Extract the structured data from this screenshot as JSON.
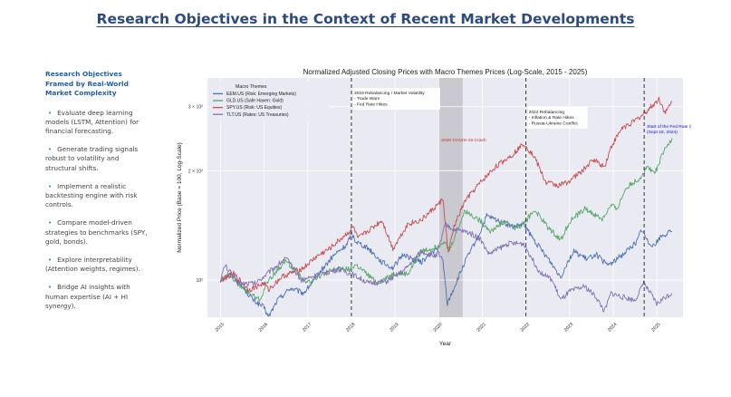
{
  "page": {
    "title": "Research Objectives in the Context of Recent Market Developments"
  },
  "sidebar": {
    "heading": "Research Objectives Framed by Real-World Market Complexity",
    "items": [
      {
        "label": "Evaluate deep learning models (LSTM, Attention) for financial forecasting."
      },
      {
        "label": "Generate trading signals robust to volatility and structural shifts."
      },
      {
        "label": "Implement a realistic backtesting engine with risk controls."
      },
      {
        "label": "Compare model-driven strategies to benchmarks (SPY, gold, bonds)."
      },
      {
        "label": "Explore interpretability (Attention weights, regimes)."
      },
      {
        "label": "Bridge AI insights with human expertise (AI + HI synergy)."
      }
    ]
  },
  "chart_data": {
    "type": "line",
    "title": "Normalized Adjusted Closing Prices with Macro Themes Prices (Log-Scale, 2015 - 2025)",
    "xlabel": "Year",
    "ylabel": "Normalized Price (Base = 100, Log-Scale)",
    "y_scale": "log",
    "xlim": [
      2014.7,
      2025.6
    ],
    "ylim": [
      79,
      360
    ],
    "x_ticks": [
      "2015",
      "2016",
      "2017",
      "2018",
      "2019",
      "2020",
      "2021",
      "2022",
      "2023",
      "2024",
      "2025"
    ],
    "y_ticks": [
      {
        "value": 100,
        "label": "10²"
      },
      {
        "value": 200,
        "label": "2 × 10²"
      },
      {
        "value": 300,
        "label": "3 × 10²"
      }
    ],
    "grid": true,
    "legend": {
      "title": "Macro Themes",
      "placement": "top-left"
    },
    "series": [
      {
        "name": "EEM.US (Risk: Emerging Markets)",
        "color": "#4c72b0",
        "points": [
          [
            2015.0,
            100
          ],
          [
            2015.25,
            104
          ],
          [
            2015.5,
            96
          ],
          [
            2015.75,
            88
          ],
          [
            2016.0,
            84
          ],
          [
            2016.1,
            79
          ],
          [
            2016.3,
            88
          ],
          [
            2016.6,
            95
          ],
          [
            2016.9,
            92
          ],
          [
            2017.0,
            95
          ],
          [
            2017.3,
            106
          ],
          [
            2017.6,
            117
          ],
          [
            2017.9,
            125
          ],
          [
            2018.0,
            135
          ],
          [
            2018.1,
            128
          ],
          [
            2018.4,
            122
          ],
          [
            2018.7,
            112
          ],
          [
            2018.95,
            108
          ],
          [
            2019.2,
            118
          ],
          [
            2019.4,
            114
          ],
          [
            2019.6,
            112
          ],
          [
            2019.95,
            122
          ],
          [
            2020.1,
            112
          ],
          [
            2020.2,
            86
          ],
          [
            2020.35,
            95
          ],
          [
            2020.6,
            112
          ],
          [
            2020.95,
            135
          ],
          [
            2021.1,
            150
          ],
          [
            2021.4,
            145
          ],
          [
            2021.7,
            140
          ],
          [
            2021.95,
            142
          ],
          [
            2022.2,
            128
          ],
          [
            2022.5,
            115
          ],
          [
            2022.8,
            102
          ],
          [
            2022.95,
            112
          ],
          [
            2023.1,
            120
          ],
          [
            2023.4,
            114
          ],
          [
            2023.6,
            118
          ],
          [
            2023.85,
            110
          ],
          [
            2024.0,
            112
          ],
          [
            2024.3,
            120
          ],
          [
            2024.55,
            128
          ],
          [
            2024.65,
            138
          ],
          [
            2024.8,
            127
          ],
          [
            2024.95,
            125
          ],
          [
            2025.1,
            132
          ],
          [
            2025.35,
            136
          ]
        ]
      },
      {
        "name": "GLD.US (Safe Haven: Gold)",
        "color": "#55a868",
        "points": [
          [
            2015.0,
            100
          ],
          [
            2015.2,
            104
          ],
          [
            2015.5,
            95
          ],
          [
            2015.9,
            88
          ],
          [
            2016.1,
            100
          ],
          [
            2016.5,
            113
          ],
          [
            2016.8,
            104
          ],
          [
            2016.95,
            98
          ],
          [
            2017.3,
            103
          ],
          [
            2017.7,
            108
          ],
          [
            2017.95,
            107
          ],
          [
            2018.1,
            110
          ],
          [
            2018.6,
            98
          ],
          [
            2018.95,
            104
          ],
          [
            2019.3,
            104
          ],
          [
            2019.6,
            120
          ],
          [
            2019.95,
            123
          ],
          [
            2020.1,
            128
          ],
          [
            2020.25,
            121
          ],
          [
            2020.6,
            155
          ],
          [
            2020.95,
            146
          ],
          [
            2021.2,
            136
          ],
          [
            2021.5,
            146
          ],
          [
            2021.75,
            139
          ],
          [
            2021.95,
            143
          ],
          [
            2022.2,
            156
          ],
          [
            2022.5,
            140
          ],
          [
            2022.8,
            129
          ],
          [
            2023.0,
            145
          ],
          [
            2023.35,
            157
          ],
          [
            2023.75,
            147
          ],
          [
            2023.95,
            160
          ],
          [
            2024.1,
            158
          ],
          [
            2024.3,
            180
          ],
          [
            2024.6,
            190
          ],
          [
            2024.8,
            206
          ],
          [
            2024.95,
            196
          ],
          [
            2025.15,
            224
          ],
          [
            2025.35,
            246
          ]
        ]
      },
      {
        "name": "SPY.US (Risk: US Equities)",
        "color": "#c44e52",
        "points": [
          [
            2015.0,
            100
          ],
          [
            2015.3,
            104
          ],
          [
            2015.65,
            94
          ],
          [
            2016.0,
            98
          ],
          [
            2016.1,
            94
          ],
          [
            2016.4,
            102
          ],
          [
            2016.9,
            108
          ],
          [
            2017.2,
            116
          ],
          [
            2017.5,
            122
          ],
          [
            2017.95,
            136
          ],
          [
            2018.05,
            140
          ],
          [
            2018.15,
            130
          ],
          [
            2018.7,
            146
          ],
          [
            2018.95,
            122
          ],
          [
            2019.3,
            143
          ],
          [
            2019.6,
            146
          ],
          [
            2019.95,
            160
          ],
          [
            2020.1,
            167
          ],
          [
            2020.22,
            118
          ],
          [
            2020.35,
            140
          ],
          [
            2020.6,
            165
          ],
          [
            2020.95,
            185
          ],
          [
            2021.3,
            205
          ],
          [
            2021.7,
            222
          ],
          [
            2021.95,
            238
          ],
          [
            2022.2,
            218
          ],
          [
            2022.45,
            186
          ],
          [
            2022.75,
            182
          ],
          [
            2022.95,
            186
          ],
          [
            2023.3,
            200
          ],
          [
            2023.55,
            215
          ],
          [
            2023.8,
            205
          ],
          [
            2023.95,
            232
          ],
          [
            2024.2,
            262
          ],
          [
            2024.45,
            272
          ],
          [
            2024.65,
            283
          ],
          [
            2024.9,
            302
          ],
          [
            2025.05,
            315
          ],
          [
            2025.2,
            288
          ],
          [
            2025.35,
            310
          ]
        ]
      },
      {
        "name": "TLT.US (Rates: US Treasuries)",
        "color": "#8172b2",
        "points": [
          [
            2015.0,
            100
          ],
          [
            2015.1,
            110
          ],
          [
            2015.4,
            98
          ],
          [
            2015.8,
            98
          ],
          [
            2016.1,
            105
          ],
          [
            2016.5,
            115
          ],
          [
            2016.85,
            100
          ],
          [
            2017.2,
            103
          ],
          [
            2017.7,
            107
          ],
          [
            2018.0,
            104
          ],
          [
            2018.4,
            98
          ],
          [
            2018.8,
            99
          ],
          [
            2019.2,
            106
          ],
          [
            2019.6,
            120
          ],
          [
            2019.95,
            116
          ],
          [
            2020.15,
            142
          ],
          [
            2020.35,
            138
          ],
          [
            2020.7,
            135
          ],
          [
            2020.95,
            130
          ],
          [
            2021.15,
            118
          ],
          [
            2021.6,
            126
          ],
          [
            2021.95,
            126
          ],
          [
            2022.3,
            106
          ],
          [
            2022.6,
            100
          ],
          [
            2022.8,
            88
          ],
          [
            2023.0,
            93
          ],
          [
            2023.35,
            96
          ],
          [
            2023.6,
            90
          ],
          [
            2023.8,
            82
          ],
          [
            2023.95,
            92
          ],
          [
            2024.2,
            90
          ],
          [
            2024.5,
            88
          ],
          [
            2024.7,
            98
          ],
          [
            2024.85,
            92
          ],
          [
            2025.0,
            86
          ],
          [
            2025.2,
            90
          ],
          [
            2025.35,
            92
          ]
        ]
      }
    ],
    "event_lines": [
      {
        "x": 2018.0,
        "label": "2018 Rebalancing / Market Volatility\n- Trade Wars\n- Fed Rate Hikes"
      },
      {
        "x": 2022.0,
        "label": "2022 Rebalancing\n- Inflation & Rate Hikes\n- Russia-Ukraine Conflict"
      },
      {
        "x": 2024.71,
        "label": "Start of the Fed Rate Cuts Cycle\n(Sept 18, 2024)",
        "color": "#1010c8"
      }
    ],
    "shaded_regions": [
      {
        "x0": 2020.0,
        "x1": 2020.55,
        "label": "2020 COVID-19 Crash",
        "label_color": "#c0302b"
      }
    ]
  }
}
